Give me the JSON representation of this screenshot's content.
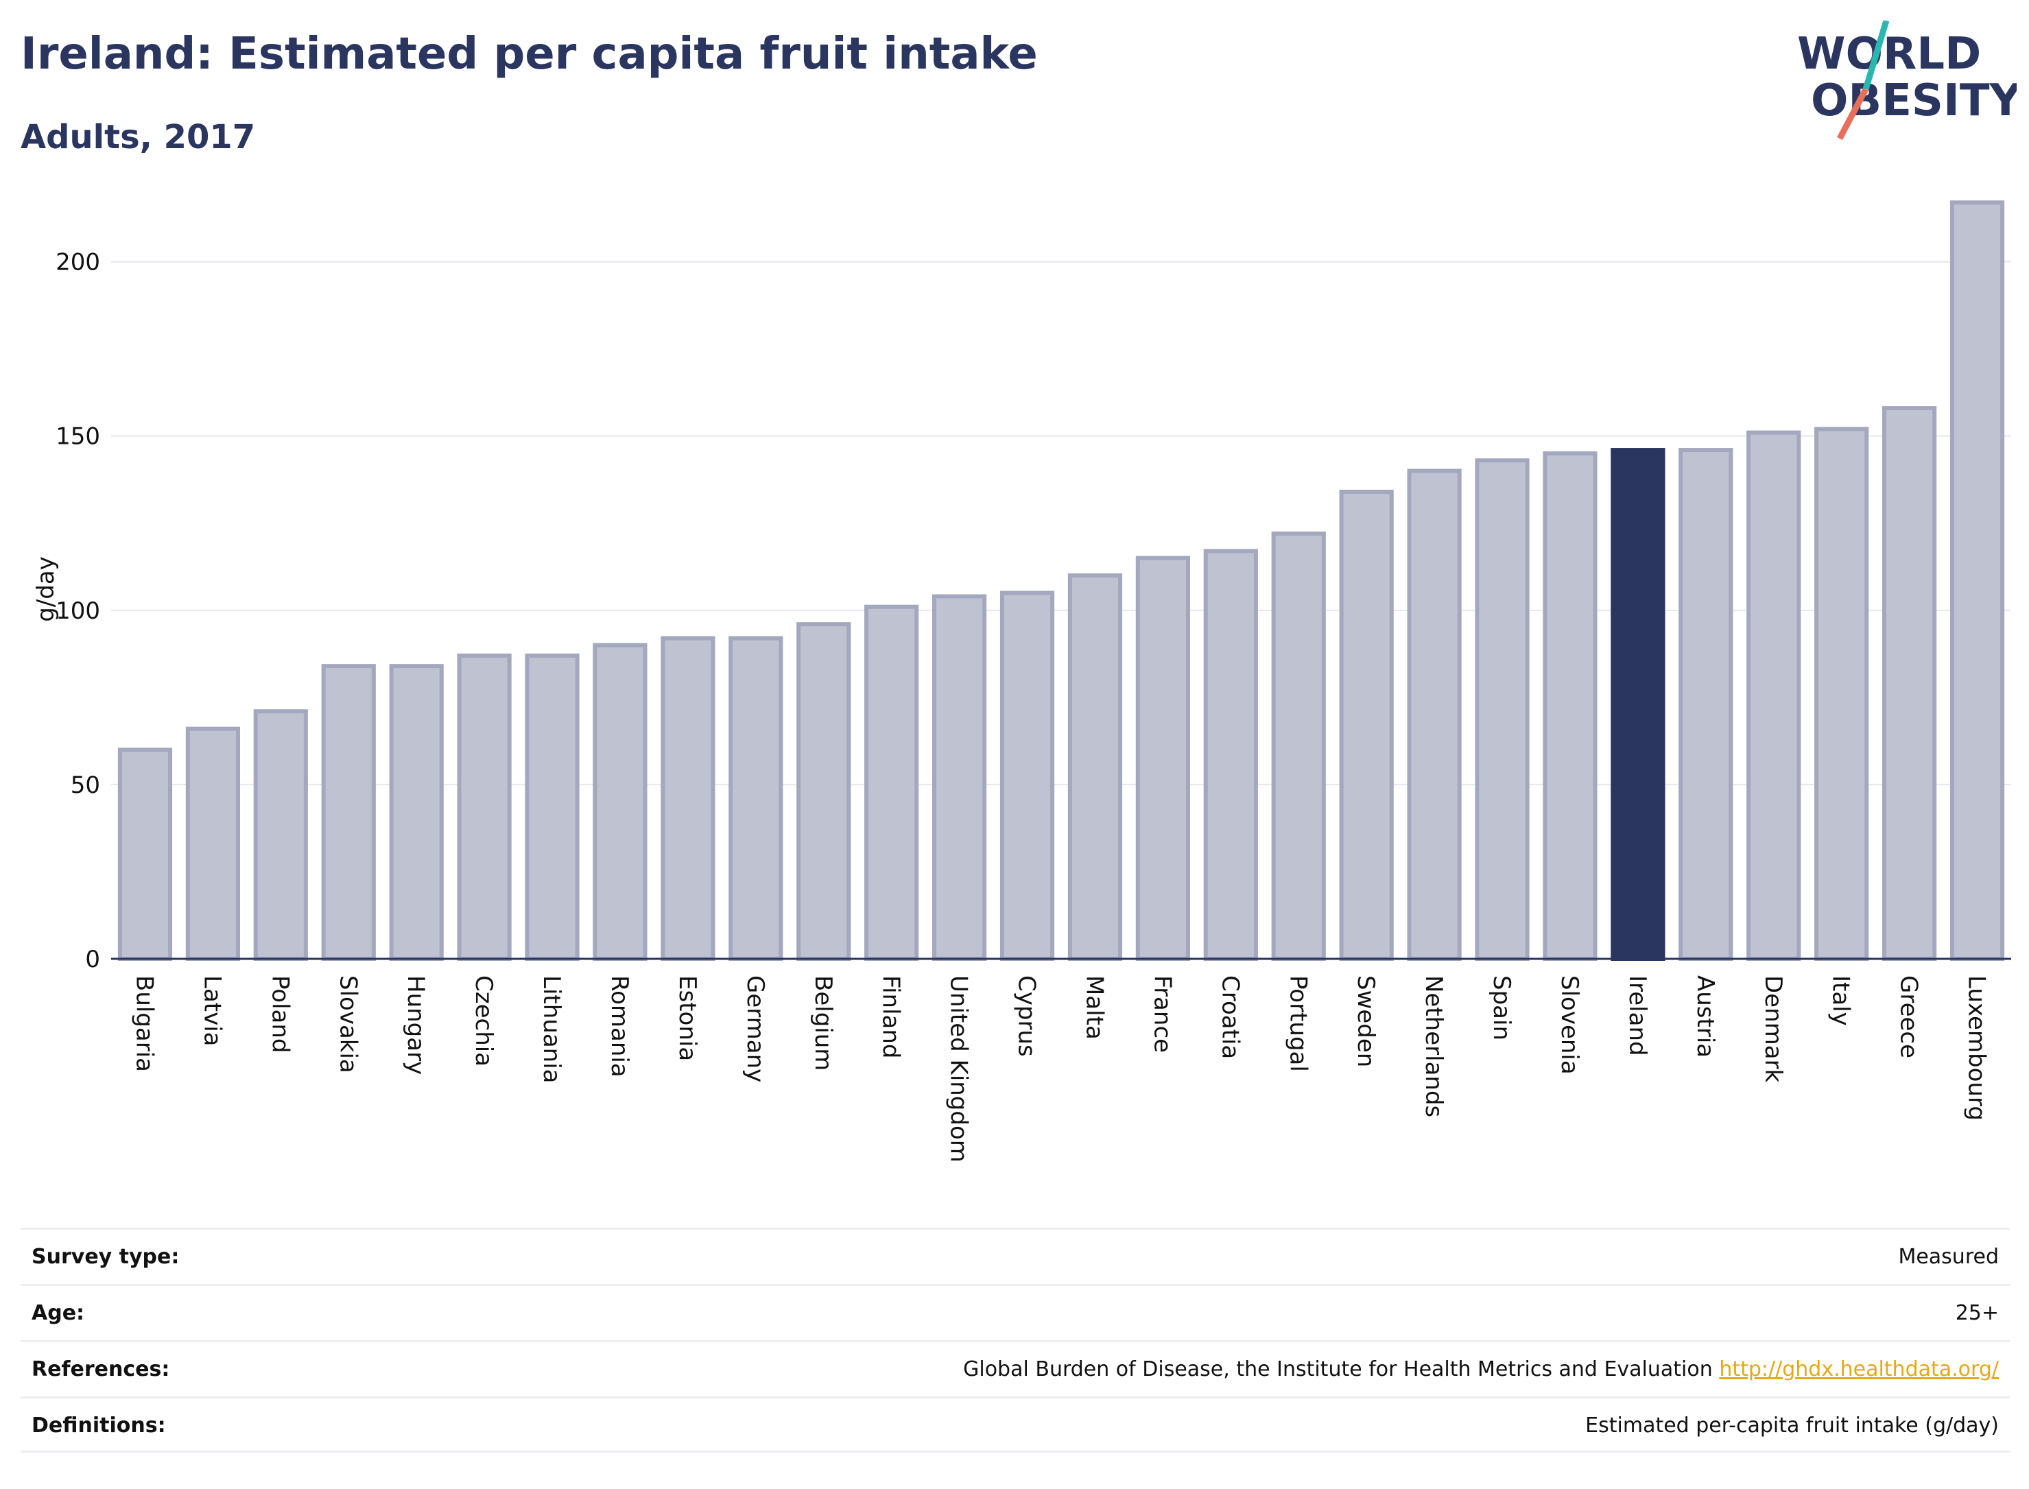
{
  "header": {
    "title": "Ireland: Estimated per capita fruit intake",
    "subtitle": "Adults, 2017"
  },
  "logo": {
    "line1": "WORLD",
    "line2": "OBESITY",
    "colors": {
      "text": "#2a3560",
      "slash_top": "#2ab7b0",
      "slash_bottom": "#e8705a"
    }
  },
  "colors": {
    "bar": "#bfc2d0",
    "bar_border": "#a3a8be",
    "highlight": "#2a3560",
    "grid": "#e6e8ee",
    "axis": "#2a3560"
  },
  "chart_data": {
    "type": "bar",
    "title": "Ireland: Estimated per capita fruit intake",
    "subtitle": "Adults, 2017",
    "ylabel": "g/day",
    "xlabel": "",
    "ylim": [
      0,
      220
    ],
    "yticks": [
      0,
      50,
      100,
      150,
      200
    ],
    "grid": true,
    "highlight": "Ireland",
    "categories": [
      "Bulgaria",
      "Latvia",
      "Poland",
      "Slovakia",
      "Hungary",
      "Czechia",
      "Lithuania",
      "Romania",
      "Estonia",
      "Germany",
      "Belgium",
      "Finland",
      "United Kingdom",
      "Cyprus",
      "Malta",
      "France",
      "Croatia",
      "Portugal",
      "Sweden",
      "Netherlands",
      "Spain",
      "Slovenia",
      "Ireland",
      "Austria",
      "Denmark",
      "Italy",
      "Greece",
      "Luxembourg"
    ],
    "values": [
      60,
      66,
      71,
      84,
      84,
      87,
      87,
      90,
      92,
      92,
      96,
      101,
      104,
      105,
      110,
      115,
      117,
      122,
      134,
      140,
      143,
      145,
      146,
      146,
      151,
      152,
      158,
      217
    ]
  },
  "info": [
    {
      "label": "Survey type:",
      "value": "Measured"
    },
    {
      "label": "Age:",
      "value": "25+"
    },
    {
      "label": "References:",
      "value": "Global Burden of Disease, the Institute for Health Metrics and Evaluation",
      "link": "http://ghdx.healthdata.org/"
    },
    {
      "label": "Definitions:",
      "value": "Estimated per-capita fruit intake (g/day)"
    }
  ]
}
